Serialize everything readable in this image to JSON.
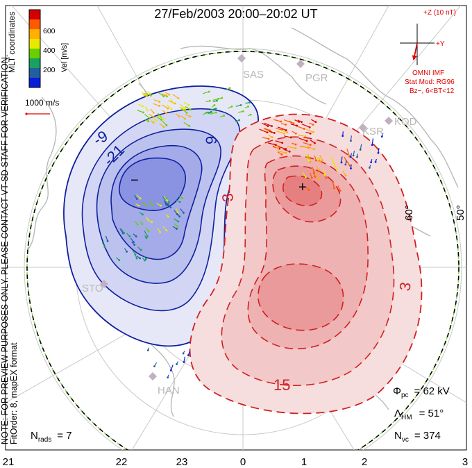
{
  "title": "27/Feb/2003 20:00–20:02 UT",
  "colorbar": {
    "label": "Vel [m/s]",
    "ticks": [
      "600",
      "400",
      "200"
    ],
    "colors": [
      "#d40000",
      "#ff5a00",
      "#ffb000",
      "#e8e800",
      "#66d000",
      "#1aa060",
      "#2060a0",
      "#0a1ed8"
    ]
  },
  "coordinates_label": "MLT coordinates",
  "scale_label": "1000 m/s",
  "imf": {
    "z_label": "+Z (10 nT)",
    "y_label": "+Y",
    "source": "OMNI IMF",
    "model": "Stat Mod: RG96",
    "condition": "Bz−, 6<BT<12"
  },
  "stations": [
    "SAS",
    "PGR",
    "KSR",
    "KOD",
    "STO",
    "HAN"
  ],
  "latitude_labels": [
    "60°",
    "50°"
  ],
  "contour_labels": [
    "-9",
    "-21",
    "9",
    "3",
    "3",
    "15",
    "−",
    "+"
  ],
  "stats": {
    "phi_label": "Φ",
    "phi_sub": "pc",
    "phi_value": "= 62 kV",
    "lambda_label": "Λ",
    "lambda_sub": "HM",
    "lambda_value": "= 51°",
    "nvc_label": "N",
    "nvc_sub": "vc",
    "nvc_value": "= 374",
    "nrads_label": "N",
    "nrads_sub": "rads",
    "nrads_value": "= 7"
  },
  "preview_note": "NOTE: FOR PREVIEW PURPOSES ONLY. PLEASE CONTACT VT-SD STAFF FOR VERIFICATION.",
  "fit_order": "FitOrder: 8, mapEX format",
  "mlt_axis": [
    "21",
    "22",
    "23",
    "0",
    "1",
    "2",
    "3"
  ],
  "colors": {
    "positive_contour": "#d02020",
    "negative_contour": "#1020a0",
    "imf_color": "#e00000",
    "grid": "#c8c8c8"
  }
}
